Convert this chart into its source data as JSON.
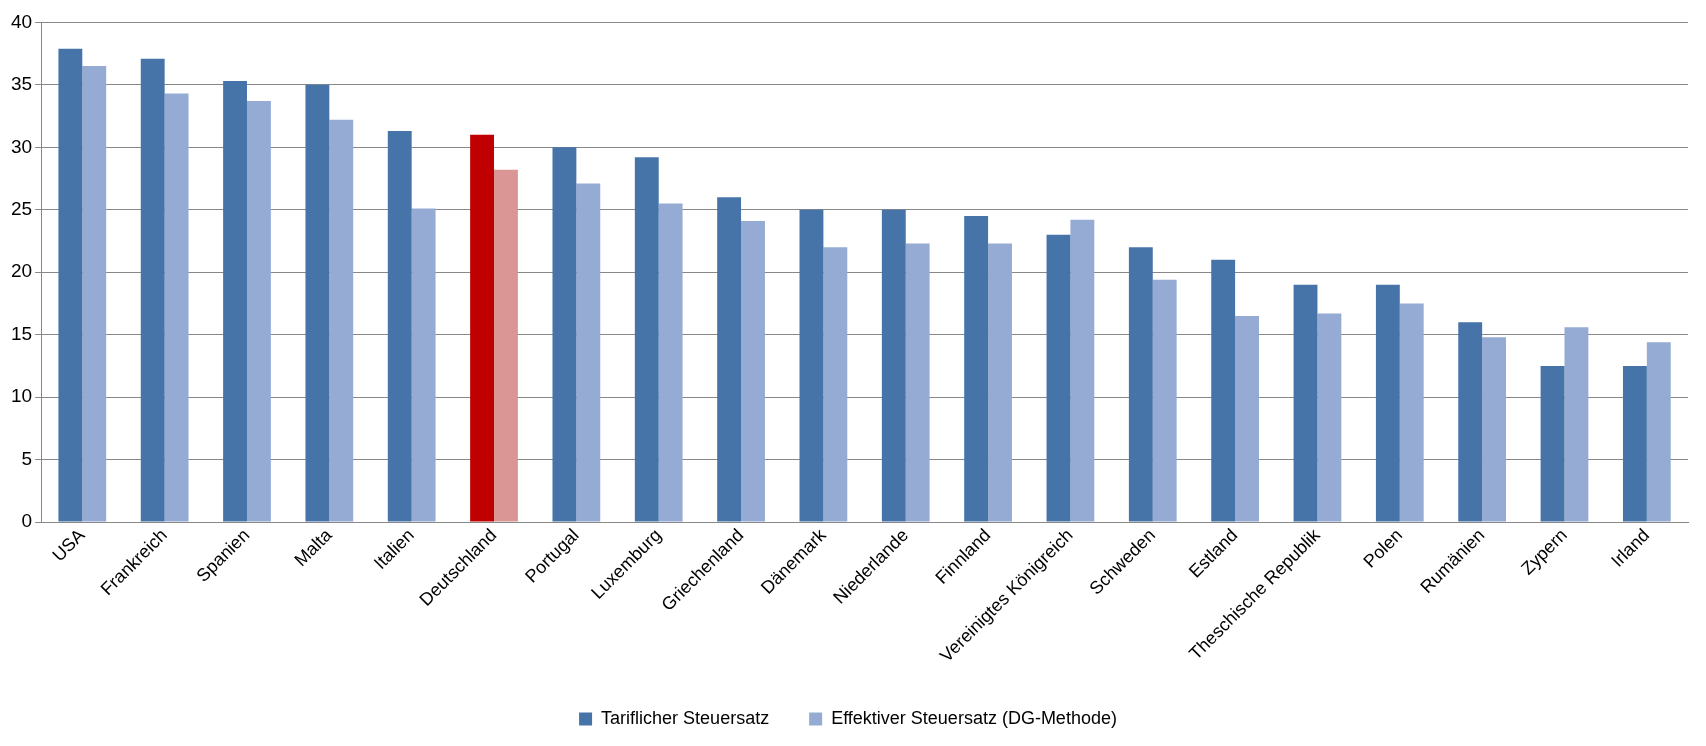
{
  "chart_data": {
    "type": "bar",
    "categories": [
      "USA",
      "Frankreich",
      "Spanien",
      "Malta",
      "Italien",
      "Deutschland",
      "Portugal",
      "Luxemburg",
      "Griechenland",
      "Dänemark",
      "Niederlande",
      "Finnland",
      "Vereinigtes Königreich",
      "Schweden",
      "Estland",
      "Theschische Republik",
      "Polen",
      "Rumänien",
      "Zypern",
      "Irland"
    ],
    "series": [
      {
        "name": "Tariflicher Steuersatz",
        "color": "#4674a9",
        "colors": [
          "#4674a9",
          "#4674a9",
          "#4674a9",
          "#4674a9",
          "#4674a9",
          "#c00000",
          "#4674a9",
          "#4674a9",
          "#4674a9",
          "#4674a9",
          "#4674a9",
          "#4674a9",
          "#4674a9",
          "#4674a9",
          "#4674a9",
          "#4674a9",
          "#4674a9",
          "#4674a9",
          "#4674a9",
          "#4674a9"
        ],
        "values": [
          37.9,
          37.1,
          35.3,
          35,
          31.3,
          31,
          30,
          29.2,
          26,
          25,
          25,
          24.5,
          23,
          22,
          21,
          19,
          19,
          16,
          12.5,
          12.5
        ]
      },
      {
        "name": "Effektiver Steuersatz (DG-Methode)",
        "color": "#95abd3",
        "colors": [
          "#95abd3",
          "#95abd3",
          "#95abd3",
          "#95abd3",
          "#95abd3",
          "#d99694",
          "#95abd3",
          "#95abd3",
          "#95abd3",
          "#95abd3",
          "#95abd3",
          "#95abd3",
          "#95abd3",
          "#95abd3",
          "#95abd3",
          "#95abd3",
          "#95abd3",
          "#95abd3",
          "#95abd3",
          "#95abd3"
        ],
        "values": [
          36.5,
          34.3,
          33.7,
          32.2,
          25.1,
          28.2,
          27.1,
          25.5,
          24.1,
          22,
          22.3,
          22.3,
          24.2,
          19.4,
          16.5,
          16.7,
          17.5,
          14.8,
          15.6,
          14.4
        ]
      }
    ],
    "ylim": [
      0,
      40
    ],
    "yticks": [
      0,
      5,
      10,
      15,
      20,
      25,
      30,
      35,
      40
    ],
    "grid": "y",
    "legend": "bottom"
  }
}
